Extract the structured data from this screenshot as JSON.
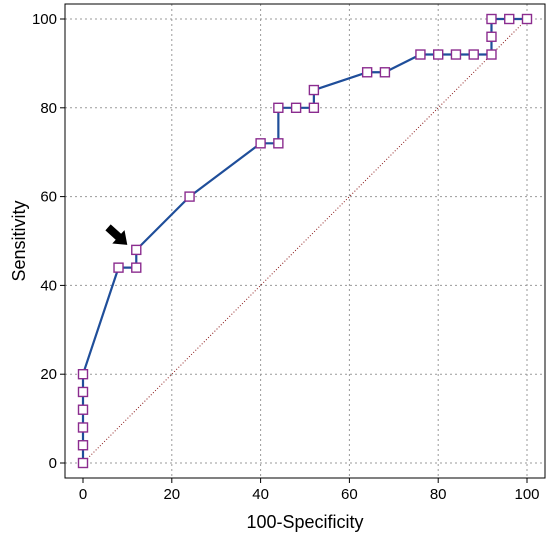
{
  "chart_data": {
    "type": "line",
    "xlabel": "100-Specificity",
    "ylabel": "Sensitivity",
    "xlim": [
      0,
      100
    ],
    "ylim": [
      0,
      100
    ],
    "xticks": [
      0,
      20,
      40,
      60,
      80,
      100
    ],
    "yticks": [
      0,
      20,
      40,
      60,
      80,
      100
    ],
    "grid": true,
    "series": [
      {
        "color": "#1f4e9a",
        "marker_color": "#8b2c8f",
        "points": [
          [
            0,
            0
          ],
          [
            0,
            4
          ],
          [
            0,
            8
          ],
          [
            0,
            12
          ],
          [
            0,
            16
          ],
          [
            0,
            20
          ],
          [
            8,
            44
          ],
          [
            12,
            44
          ],
          [
            12,
            48
          ],
          [
            24,
            60
          ],
          [
            40,
            72
          ],
          [
            44,
            72
          ],
          [
            44,
            80
          ],
          [
            48,
            80
          ],
          [
            52,
            80
          ],
          [
            52,
            84
          ],
          [
            64,
            88
          ],
          [
            68,
            88
          ],
          [
            76,
            92
          ],
          [
            80,
            92
          ],
          [
            84,
            92
          ],
          [
            88,
            92
          ],
          [
            92,
            92
          ],
          [
            92,
            96
          ],
          [
            92,
            100
          ],
          [
            96,
            100
          ],
          [
            100,
            100
          ]
        ]
      }
    ],
    "reference_line": {
      "from": [
        0,
        0
      ],
      "to": [
        100,
        100
      ],
      "color": "#8b1a1a",
      "style": "dotted"
    },
    "annotation": {
      "type": "arrow",
      "target": [
        12,
        48
      ],
      "color": "#000000"
    }
  }
}
